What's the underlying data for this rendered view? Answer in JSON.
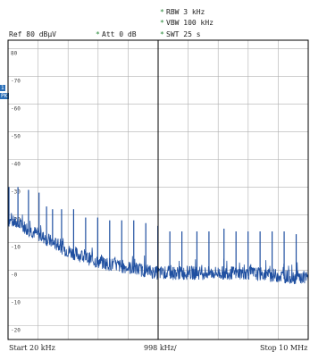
{
  "header": {
    "rbw": "RBW 3 kHz",
    "vbw": "VBW 100 kHz",
    "swt": "SWT 25 s",
    "ref": "Ref  80 dBµV",
    "att": "Att  0 dB",
    "star": "*"
  },
  "side_markers": {
    "m1": "1",
    "m2": "PK"
  },
  "footer": {
    "start": "Start 20 kHz",
    "div": "998 kHz/",
    "stop": "Stop 10 MHz"
  },
  "colors": {
    "trace": "#1f4fa0",
    "grid": "#b0b0b0",
    "frame": "#000000",
    "annotation": "#2a8a3a",
    "marker_bg": "#2a6fb8"
  },
  "chart_data": {
    "type": "line",
    "title": "",
    "xlabel": "",
    "ylabel": "",
    "xlim": [
      0.02,
      10.0
    ],
    "ylim": [
      -25,
      83
    ],
    "x_unit": "MHz",
    "y_unit": "dBµV",
    "yticks": [
      80,
      70,
      60,
      50,
      40,
      30,
      20,
      10,
      0,
      -10,
      -20
    ],
    "yticklabels": [
      "80",
      "-70",
      "-60",
      "-50",
      "-40",
      "-30",
      "-20",
      "-10",
      "-0",
      "-10",
      "-20"
    ],
    "grid": true,
    "series": [
      {
        "noise_floor": [
          [
            0.02,
            18
          ],
          [
            0.5,
            16
          ],
          [
            1.0,
            13
          ],
          [
            1.5,
            10
          ],
          [
            2.0,
            7
          ],
          [
            2.5,
            5
          ],
          [
            3.0,
            3
          ],
          [
            3.5,
            2
          ],
          [
            4.0,
            1
          ],
          [
            4.5,
            0
          ],
          [
            5.0,
            -1
          ],
          [
            6.0,
            -1
          ],
          [
            7.0,
            -1
          ],
          [
            8.0,
            -1
          ],
          [
            9.0,
            -2
          ],
          [
            10.0,
            -3
          ]
        ],
        "spurs": [
          [
            0.05,
            30
          ],
          [
            0.35,
            30
          ],
          [
            0.7,
            29
          ],
          [
            1.05,
            28
          ],
          [
            1.3,
            23
          ],
          [
            1.5,
            22
          ],
          [
            1.8,
            22
          ],
          [
            2.2,
            22
          ],
          [
            2.6,
            19
          ],
          [
            3.0,
            19
          ],
          [
            3.4,
            18
          ],
          [
            3.8,
            18
          ],
          [
            4.2,
            18
          ],
          [
            4.6,
            17
          ],
          [
            5.0,
            16
          ],
          [
            5.4,
            14
          ],
          [
            5.8,
            14
          ],
          [
            6.3,
            14
          ],
          [
            6.7,
            14
          ],
          [
            7.2,
            15
          ],
          [
            7.6,
            14
          ],
          [
            8.0,
            14
          ],
          [
            8.4,
            14
          ],
          [
            8.8,
            14
          ],
          [
            9.2,
            14
          ],
          [
            9.6,
            13
          ]
        ]
      }
    ]
  }
}
